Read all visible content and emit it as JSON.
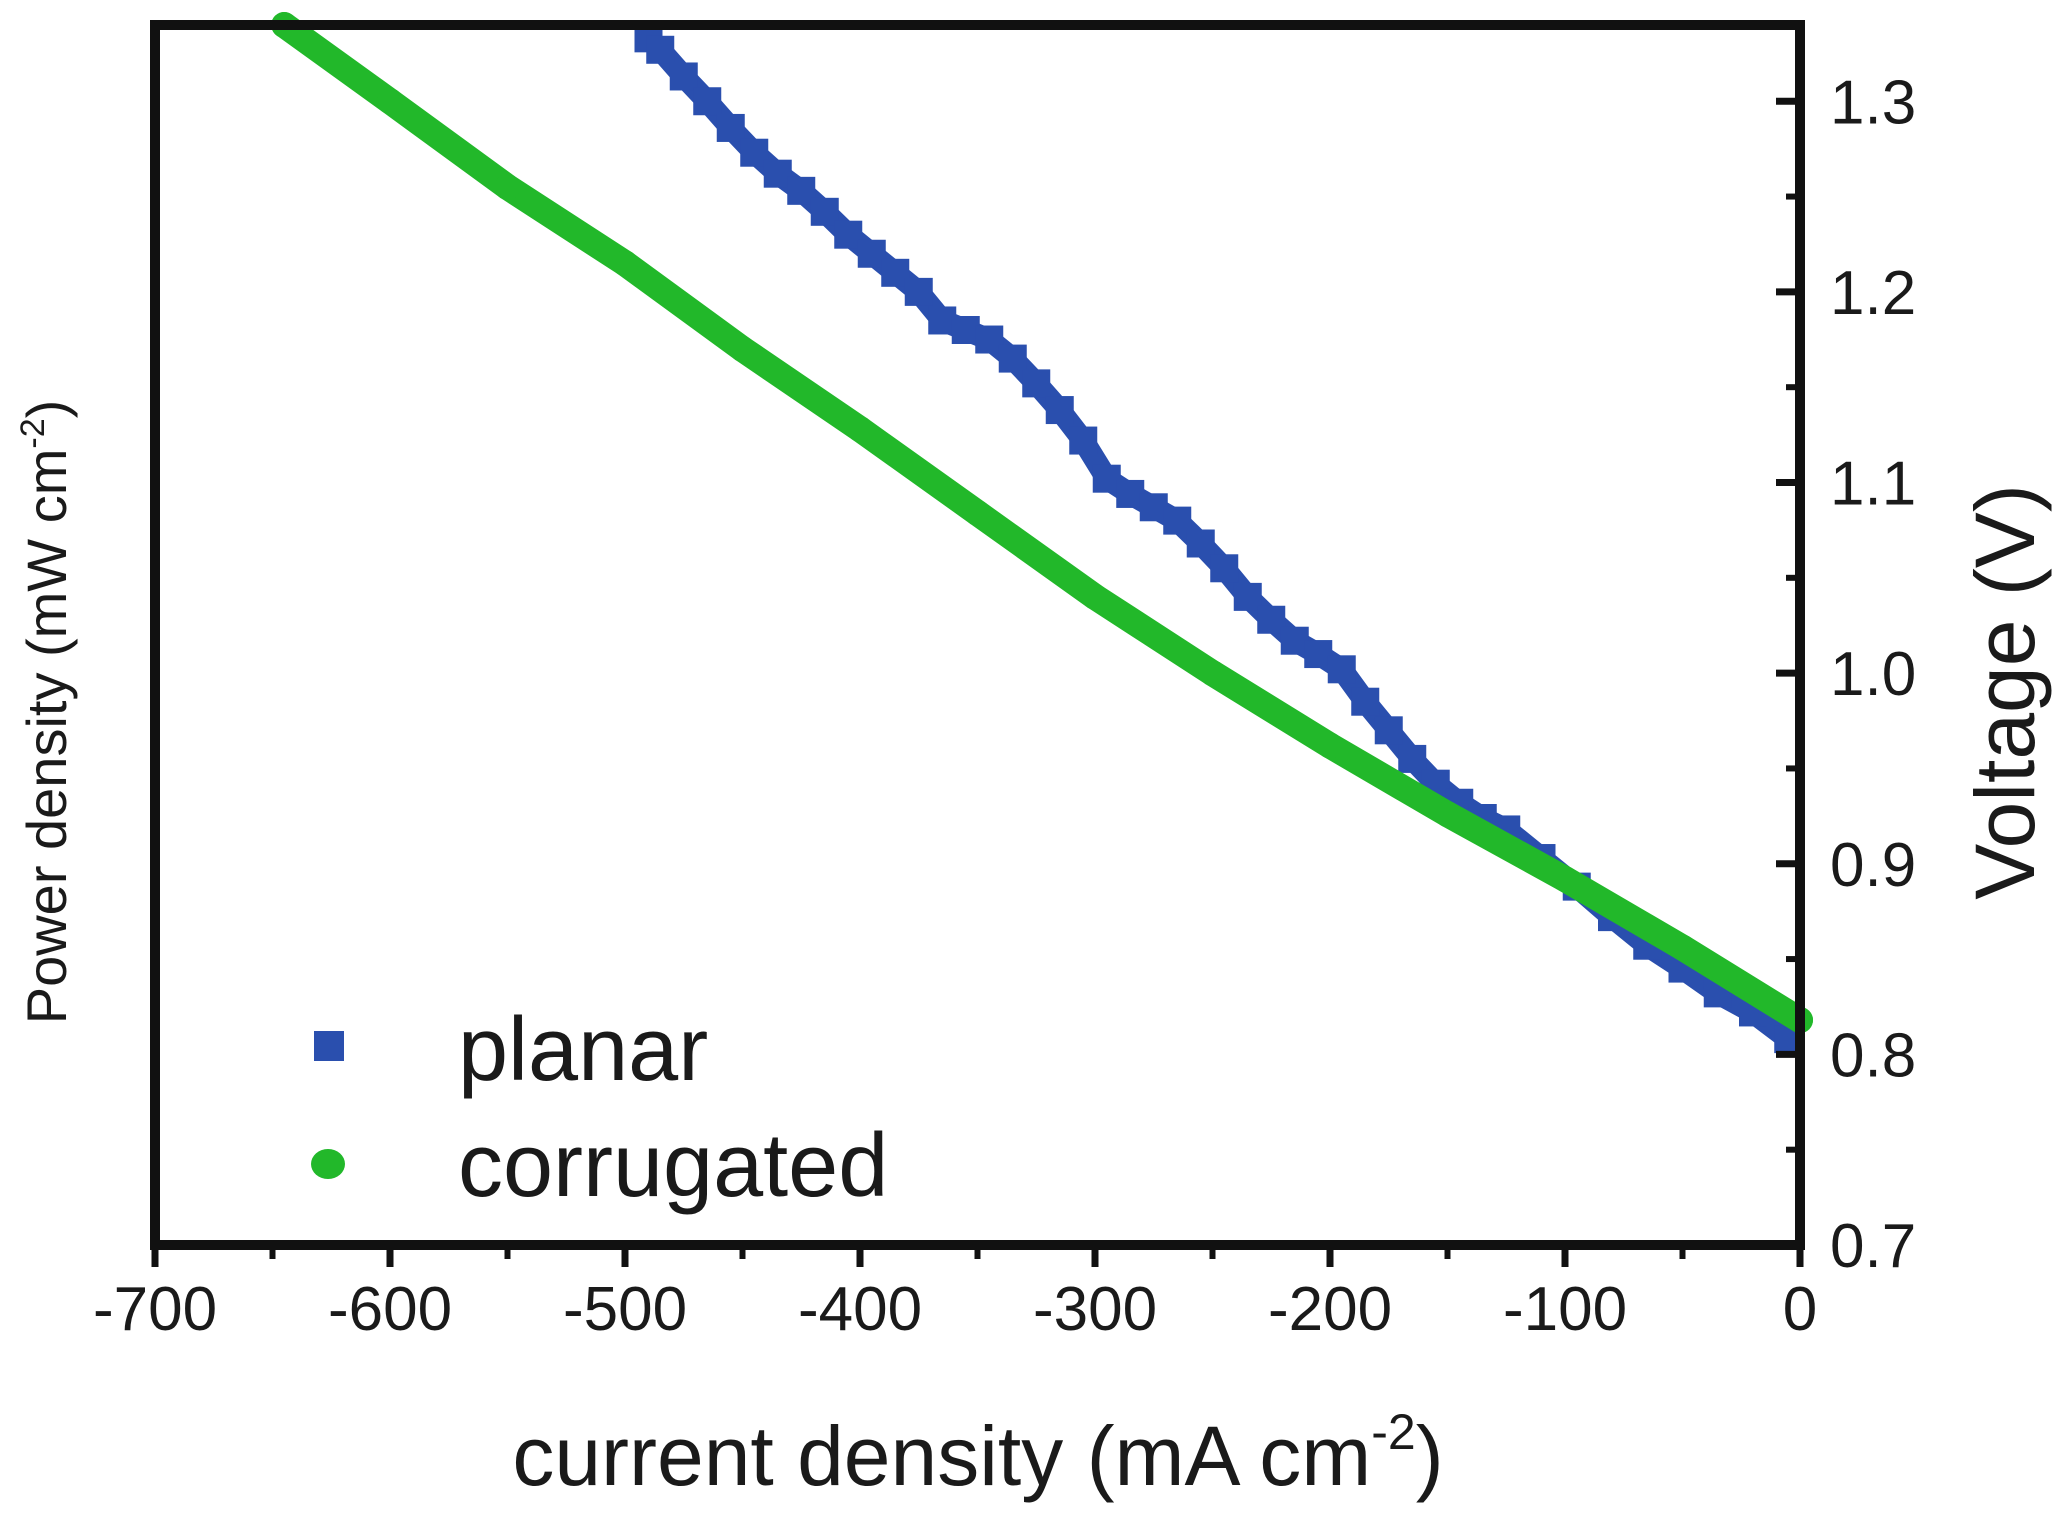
{
  "chart_data": {
    "type": "line",
    "title": "",
    "xlabel": "current density (mA cm",
    "xlabel_sup": "-2",
    "xlabel_close": ")",
    "ylabel_left": "Power density (mW cm",
    "ylabel_left_sup": "-2",
    "ylabel_left_close": ")",
    "ylabel_right": "Voltage (V)",
    "xlim": [
      -700,
      0
    ],
    "ylim_right": [
      0.7,
      1.34
    ],
    "x_ticks": [
      -700,
      -600,
      -500,
      -400,
      -300,
      -200,
      -100,
      0
    ],
    "x_tick_labels": [
      "-700",
      "-600",
      "-500",
      "-400",
      "-300",
      "-200",
      "-100",
      "0"
    ],
    "y_right_ticks": [
      0.7,
      0.8,
      0.9,
      1.0,
      1.1,
      1.2,
      1.3
    ],
    "y_right_tick_labels": [
      "0.7",
      "0.8",
      "0.9",
      "1.0",
      "1.1",
      "1.2",
      "1.3"
    ],
    "legend_position": "bottom-left",
    "series": [
      {
        "name": "planar",
        "color": "#2a4fae",
        "marker": "square",
        "x": [
          -490,
          -485,
          -475,
          -465,
          -455,
          -445,
          -435,
          -425,
          -415,
          -405,
          -395,
          -385,
          -375,
          -365,
          -355,
          -345,
          -335,
          -325,
          -315,
          -305,
          -295,
          -285,
          -275,
          -265,
          -255,
          -245,
          -235,
          -225,
          -215,
          -205,
          -195,
          -185,
          -175,
          -165,
          -155,
          -145,
          -135,
          -125,
          -110,
          -95,
          -80,
          -65,
          -50,
          -35,
          -20,
          -5
        ],
        "y": [
          1.333,
          1.327,
          1.313,
          1.3,
          1.286,
          1.273,
          1.262,
          1.253,
          1.242,
          1.23,
          1.22,
          1.21,
          1.2,
          1.185,
          1.18,
          1.175,
          1.165,
          1.152,
          1.138,
          1.122,
          1.102,
          1.094,
          1.087,
          1.08,
          1.068,
          1.055,
          1.04,
          1.028,
          1.017,
          1.01,
          1.002,
          0.985,
          0.97,
          0.955,
          0.942,
          0.932,
          0.924,
          0.918,
          0.903,
          0.888,
          0.872,
          0.857,
          0.845,
          0.832,
          0.822,
          0.808
        ]
      },
      {
        "name": "corrugated",
        "color": "#22b82a",
        "marker": "circle",
        "x": [
          -645,
          -600,
          -550,
          -500,
          -450,
          -400,
          -350,
          -300,
          -250,
          -200,
          -150,
          -100,
          -50,
          0
        ],
        "y": [
          1.34,
          1.3,
          1.255,
          1.215,
          1.17,
          1.128,
          1.084,
          1.04,
          1.0,
          0.962,
          0.926,
          0.892,
          0.856,
          0.818
        ]
      }
    ]
  }
}
